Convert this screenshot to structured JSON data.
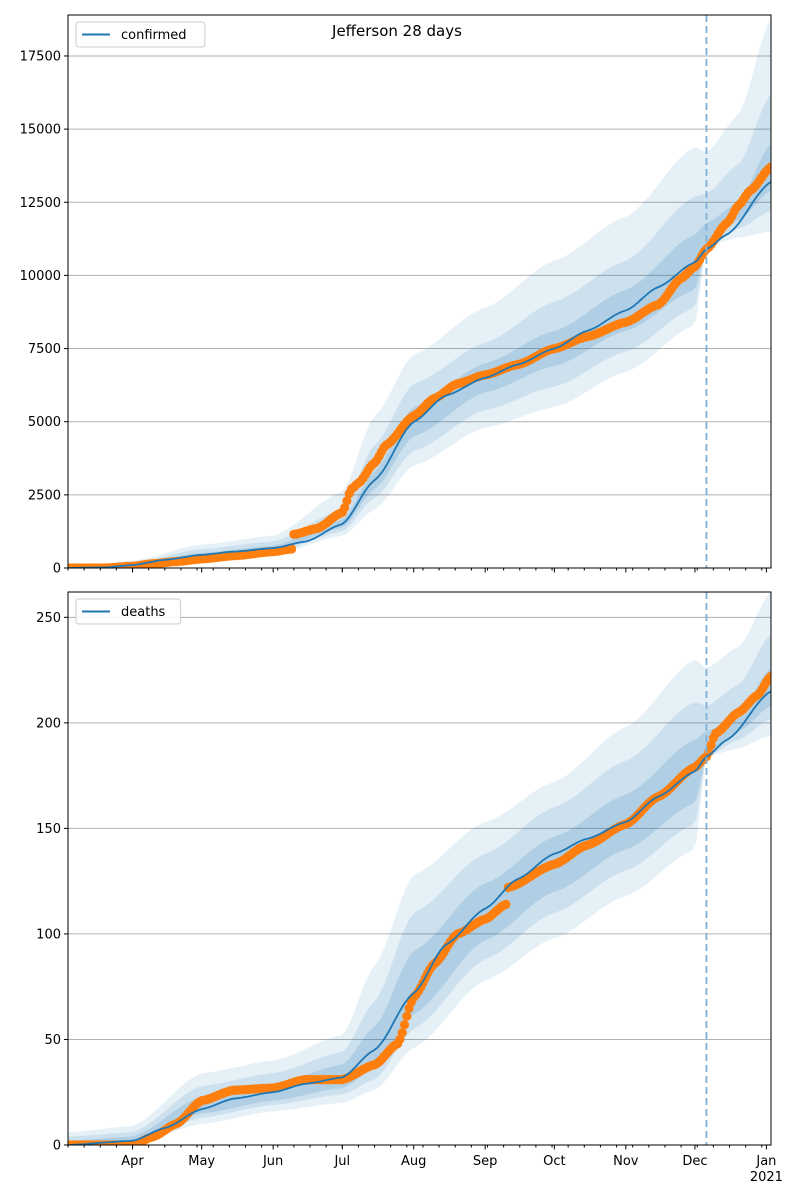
{
  "chart_data": [
    {
      "type": "line",
      "title": "Jefferson 28 days",
      "xlabel": "",
      "ylabel": "",
      "x_tick_labels": [
        "Apr",
        "May",
        "Jun",
        "Jul",
        "Aug",
        "Sep",
        "Oct",
        "Nov",
        "Dec",
        "Jan\n2021"
      ],
      "x_range": [
        "2020-03-04",
        "2021-01-03"
      ],
      "ylim": [
        0,
        18900
      ],
      "yticks": [
        0,
        2500,
        5000,
        7500,
        10000,
        12500,
        15000,
        17500
      ],
      "grid": "horizontal",
      "legend": {
        "placement": "upper left",
        "entries": [
          "confirmed"
        ]
      },
      "forecast_start": "2020-12-06",
      "colors": {
        "model": "#1f77b4",
        "observed": "#ff7f0e",
        "band": "#1f77b4",
        "forecast_line": "#7fb1d6"
      },
      "series": [
        {
          "name": "confirmed",
          "role": "model",
          "x": [
            "2020-03-04",
            "2020-03-20",
            "2020-04-01",
            "2020-04-15",
            "2020-05-01",
            "2020-05-15",
            "2020-06-01",
            "2020-06-15",
            "2020-07-01",
            "2020-07-15",
            "2020-08-01",
            "2020-08-15",
            "2020-09-01",
            "2020-09-15",
            "2020-10-01",
            "2020-10-15",
            "2020-11-01",
            "2020-11-15",
            "2020-12-01",
            "2020-12-06",
            "2020-12-15",
            "2021-01-03"
          ],
          "values": [
            0,
            20,
            100,
            280,
            450,
            560,
            680,
            900,
            1500,
            3000,
            5000,
            5900,
            6500,
            6950,
            7500,
            8100,
            8800,
            9600,
            10450,
            10900,
            11400,
            13200
          ]
        },
        {
          "name": "",
          "role": "observed",
          "x": [
            "2020-03-04",
            "2020-03-20",
            "2020-04-01",
            "2020-04-10",
            "2020-04-20",
            "2020-05-01",
            "2020-05-15",
            "2020-06-01",
            "2020-06-09",
            "2020-06-10",
            "2020-06-20",
            "2020-07-01",
            "2020-07-05",
            "2020-07-08",
            "2020-07-15",
            "2020-07-20",
            "2020-08-01",
            "2020-08-10",
            "2020-08-20",
            "2020-09-01",
            "2020-09-15",
            "2020-10-01",
            "2020-10-15",
            "2020-11-01",
            "2020-11-15",
            "2020-11-25",
            "2020-12-01",
            "2020-12-06",
            "2020-12-15",
            "2020-12-20",
            "2020-12-25",
            "2021-01-03"
          ],
          "values": [
            0,
            0,
            60,
            150,
            220,
            310,
            420,
            560,
            650,
            1150,
            1350,
            1900,
            2700,
            2900,
            3600,
            4200,
            5200,
            5800,
            6300,
            6600,
            6950,
            7500,
            7900,
            8400,
            9000,
            9900,
            10300,
            10900,
            11800,
            12400,
            12900,
            13700
          ]
        }
      ],
      "bands": [
        {
          "level": "outer",
          "x": [
            "2020-03-04",
            "2020-04-01",
            "2020-05-01",
            "2020-06-01",
            "2020-07-01",
            "2020-07-15",
            "2020-08-01",
            "2020-09-01",
            "2020-10-01",
            "2020-11-01",
            "2020-12-01",
            "2020-12-06",
            "2020-12-20",
            "2021-01-03"
          ],
          "lower": [
            0,
            10,
            200,
            450,
            1100,
            2000,
            3500,
            4800,
            5500,
            6700,
            8300,
            11000,
            11300,
            11500
          ],
          "upper": [
            0,
            250,
            800,
            1100,
            2600,
            5200,
            7300,
            8900,
            10500,
            12000,
            14400,
            14200,
            15500,
            18800
          ]
        },
        {
          "level": "middle",
          "x": [
            "2020-03-04",
            "2020-04-01",
            "2020-05-01",
            "2020-06-01",
            "2020-07-01",
            "2020-07-15",
            "2020-08-01",
            "2020-09-01",
            "2020-10-01",
            "2020-11-01",
            "2020-12-01",
            "2020-12-06",
            "2020-12-20",
            "2021-01-03"
          ],
          "lower": [
            0,
            40,
            300,
            520,
            1250,
            2400,
            4000,
            5400,
            6200,
            7400,
            8900,
            11000,
            11600,
            12200
          ],
          "upper": [
            0,
            180,
            650,
            900,
            2000,
            4200,
            6300,
            7700,
            9100,
            10500,
            12700,
            12800,
            13800,
            16200
          ]
        },
        {
          "level": "inner",
          "x": [
            "2020-03-04",
            "2020-04-01",
            "2020-05-01",
            "2020-06-01",
            "2020-07-01",
            "2020-07-15",
            "2020-08-01",
            "2020-09-01",
            "2020-10-01",
            "2020-11-01",
            "2020-12-01",
            "2020-12-06",
            "2020-12-20",
            "2021-01-03"
          ],
          "lower": [
            0,
            70,
            380,
            600,
            1380,
            2700,
            4500,
            6000,
            6900,
            8100,
            9500,
            11000,
            11900,
            12900
          ],
          "upper": [
            0,
            130,
            520,
            760,
            1650,
            3300,
            5500,
            7000,
            8100,
            9500,
            11400,
            11800,
            12500,
            14500
          ]
        }
      ]
    },
    {
      "type": "line",
      "title": "",
      "xlabel": "",
      "ylabel": "",
      "x_tick_labels": [
        "Apr",
        "May",
        "Jun",
        "Jul",
        "Aug",
        "Sep",
        "Oct",
        "Nov",
        "Dec",
        "Jan\n2021"
      ],
      "x_range": [
        "2020-03-04",
        "2021-01-03"
      ],
      "ylim": [
        0,
        262
      ],
      "yticks": [
        0,
        50,
        100,
        150,
        200,
        250
      ],
      "grid": "horizontal",
      "legend": {
        "placement": "upper left",
        "entries": [
          "deaths"
        ]
      },
      "forecast_start": "2020-12-06",
      "colors": {
        "model": "#1f77b4",
        "observed": "#ff7f0e",
        "band": "#1f77b4",
        "forecast_line": "#7fb1d6"
      },
      "series": [
        {
          "name": "deaths",
          "role": "model",
          "x": [
            "2020-03-04",
            "2020-04-01",
            "2020-04-15",
            "2020-05-01",
            "2020-05-15",
            "2020-06-01",
            "2020-06-15",
            "2020-07-01",
            "2020-07-15",
            "2020-08-01",
            "2020-08-15",
            "2020-09-01",
            "2020-09-15",
            "2020-10-01",
            "2020-10-15",
            "2020-11-01",
            "2020-11-15",
            "2020-12-01",
            "2020-12-06",
            "2020-12-15",
            "2021-01-03"
          ],
          "values": [
            0,
            2,
            8,
            17,
            22,
            25,
            29,
            32,
            45,
            72,
            95,
            112,
            126,
            138,
            145,
            153,
            165,
            177,
            184,
            192,
            215
          ]
        },
        {
          "name": "",
          "role": "observed",
          "x": [
            "2020-03-04",
            "2020-04-01",
            "2020-04-10",
            "2020-04-20",
            "2020-05-01",
            "2020-05-15",
            "2020-06-01",
            "2020-06-15",
            "2020-07-01",
            "2020-07-15",
            "2020-07-25",
            "2020-08-01",
            "2020-08-10",
            "2020-08-20",
            "2020-09-01",
            "2020-09-10",
            "2020-09-11",
            "2020-10-01",
            "2020-10-15",
            "2020-11-01",
            "2020-11-15",
            "2020-12-01",
            "2020-12-06",
            "2020-12-10",
            "2020-12-20",
            "2020-12-28",
            "2021-01-03"
          ],
          "values": [
            0,
            0,
            4,
            10,
            21,
            26,
            27,
            31,
            31,
            38,
            48,
            70,
            86,
            100,
            107,
            114,
            122,
            133,
            142,
            152,
            165,
            179,
            184,
            195,
            205,
            213,
            222
          ]
        }
      ],
      "bands": [
        {
          "level": "outer",
          "x": [
            "2020-03-04",
            "2020-04-01",
            "2020-05-01",
            "2020-06-01",
            "2020-07-01",
            "2020-07-15",
            "2020-08-01",
            "2020-09-01",
            "2020-10-01",
            "2020-11-01",
            "2020-12-01",
            "2020-12-06",
            "2020-12-20",
            "2021-01-03"
          ],
          "lower": [
            0,
            0,
            10,
            16,
            20,
            26,
            46,
            78,
            98,
            118,
            140,
            184,
            188,
            194
          ],
          "upper": [
            6,
            9,
            34,
            40,
            52,
            85,
            128,
            153,
            172,
            198,
            230,
            226,
            236,
            262
          ]
        },
        {
          "level": "middle",
          "x": [
            "2020-03-04",
            "2020-04-01",
            "2020-05-01",
            "2020-06-01",
            "2020-07-01",
            "2020-07-15",
            "2020-08-01",
            "2020-09-01",
            "2020-10-01",
            "2020-11-01",
            "2020-12-01",
            "2020-12-06",
            "2020-12-20",
            "2021-01-03"
          ],
          "lower": [
            0,
            0,
            13,
            19,
            24,
            31,
            55,
            88,
            110,
            130,
            152,
            184,
            192,
            202
          ],
          "upper": [
            4,
            6,
            28,
            34,
            44,
            68,
            110,
            138,
            160,
            182,
            210,
            208,
            218,
            242
          ]
        },
        {
          "level": "inner",
          "x": [
            "2020-03-04",
            "2020-04-01",
            "2020-05-01",
            "2020-06-01",
            "2020-07-01",
            "2020-07-15",
            "2020-08-01",
            "2020-09-01",
            "2020-10-01",
            "2020-11-01",
            "2020-12-01",
            "2020-12-06",
            "2020-12-20",
            "2021-01-03"
          ],
          "lower": [
            0,
            1,
            15,
            21,
            27,
            36,
            62,
            97,
            120,
            140,
            162,
            184,
            196,
            208
          ],
          "upper": [
            2,
            4,
            23,
            29,
            38,
            56,
            92,
            124,
            146,
            166,
            192,
            196,
            204,
            226
          ]
        }
      ]
    }
  ]
}
